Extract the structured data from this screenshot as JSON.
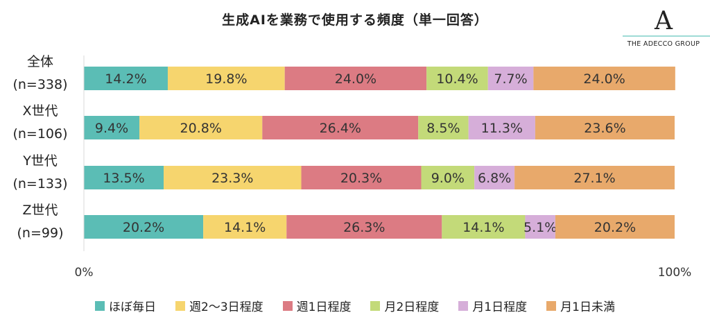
{
  "title": "生成AIを業務で使用する頻度（単一回答）",
  "logo": {
    "wordmark": "THE ADECCO GROUP",
    "mark": "A"
  },
  "chart_data": {
    "type": "bar",
    "orientation": "horizontal",
    "stacked": true,
    "percent": true,
    "categories": [
      {
        "name": "全体",
        "n": "(n=338)"
      },
      {
        "name": "X世代",
        "n": "(n=106)"
      },
      {
        "name": "Y世代",
        "n": "(n=133)"
      },
      {
        "name": "Z世代",
        "n": "(n=99)"
      }
    ],
    "series": [
      {
        "name": "ほぼ毎日",
        "color": "#5BBDB5",
        "values": [
          14.2,
          9.4,
          13.5,
          20.2
        ]
      },
      {
        "name": "週2～3日程度",
        "color": "#F6D56E",
        "values": [
          19.8,
          20.8,
          23.3,
          14.1
        ]
      },
      {
        "name": "週1日程度",
        "color": "#DC7B83",
        "values": [
          24.0,
          26.4,
          20.3,
          26.3
        ]
      },
      {
        "name": "月2日程度",
        "color": "#C3DA79",
        "values": [
          10.4,
          8.5,
          9.0,
          14.1
        ]
      },
      {
        "name": "月1日程度",
        "color": "#D6AED9",
        "values": [
          7.7,
          11.3,
          6.8,
          5.1
        ]
      },
      {
        "name": "月1日未満",
        "color": "#E8A96B",
        "values": [
          24.0,
          23.6,
          27.1,
          20.2
        ]
      }
    ],
    "value_labels": [
      [
        "14.2%",
        "9.4%",
        "13.5%",
        "20.2%"
      ],
      [
        "19.8%",
        "20.8%",
        "23.3%",
        "14.1%"
      ],
      [
        "24.0%",
        "26.4%",
        "20.3%",
        "26.3%"
      ],
      [
        "10.4%",
        "8.5%",
        "9.0%",
        "14.1%"
      ],
      [
        "7.7%",
        "11.3%",
        "6.8%",
        "5.1%"
      ],
      [
        "24.0%",
        "23.6%",
        "27.1%",
        "20.2%"
      ]
    ],
    "x_ticks": [
      "0%",
      "100%"
    ],
    "xlim": [
      0,
      100
    ],
    "legend_position": "bottom",
    "grid": false
  }
}
